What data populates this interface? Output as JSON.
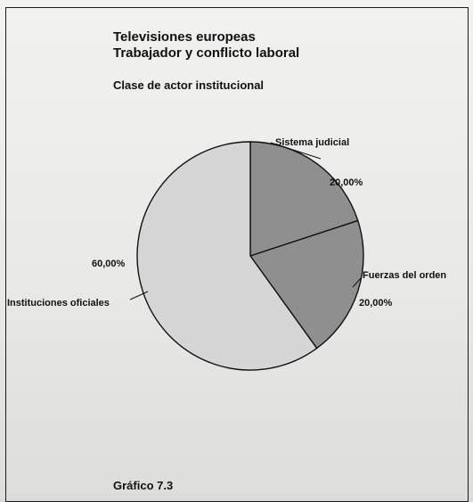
{
  "title": "Televisiones europeas",
  "subtitle": "Trabajador y conflicto laboral",
  "caption": "Clase de actor institucional",
  "figure_number": "Gráfico 7.3",
  "colors": {
    "background": "#ebebe9",
    "border": "#1a1a1a",
    "slice_dark": "#8f8f8f",
    "slice_light": "#d6d6d6",
    "text": "#111111"
  },
  "chart_data": {
    "type": "pie",
    "title": "Televisiones europeas",
    "subtitle": "Trabajador y conflicto laboral",
    "caption": "Clase de actor institucional",
    "categories": [
      "Sistema judicial",
      "Fuerzas del orden",
      "Instituciones oficiales"
    ],
    "values": [
      20,
      20,
      60
    ],
    "value_labels": [
      "20,00%",
      "20,00%",
      "60,00%"
    ],
    "legend": "none",
    "slice_colors": [
      "#8f8f8f",
      "#8f8f8f",
      "#d6d6d6"
    ]
  }
}
